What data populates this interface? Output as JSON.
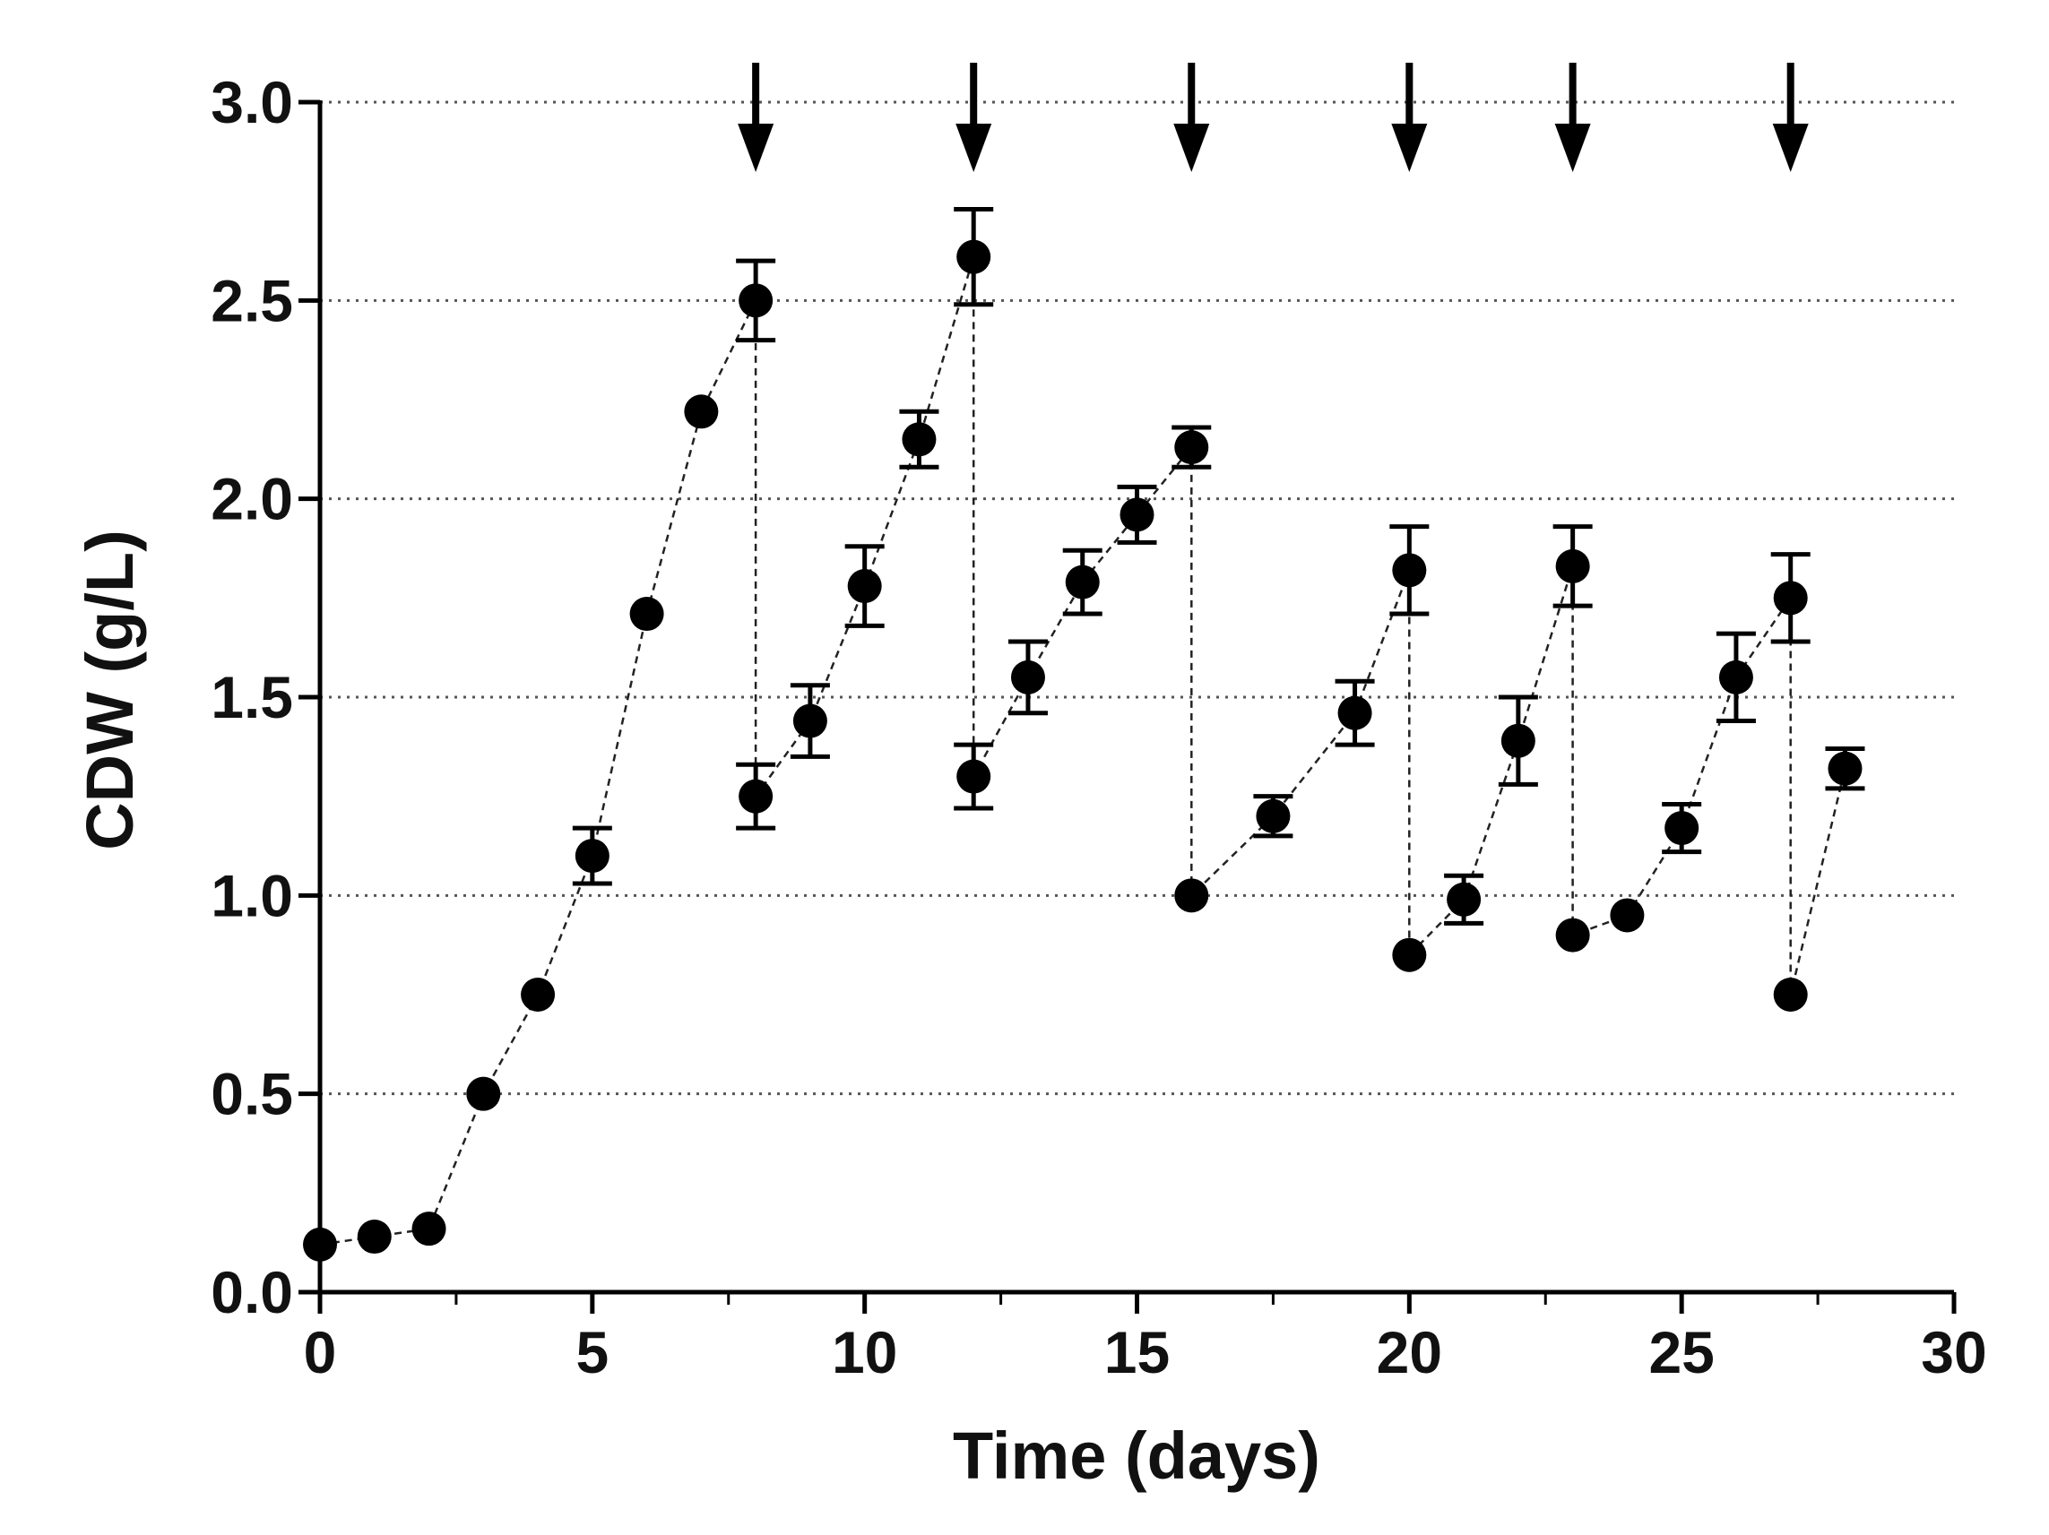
{
  "chart_data": {
    "type": "scatter",
    "title": "",
    "xlabel": "Time (days)",
    "ylabel": "CDW (g/L)",
    "xlim": [
      0,
      30
    ],
    "ylim": [
      0,
      3.0
    ],
    "x_ticks": [
      0,
      5,
      10,
      15,
      20,
      25,
      30
    ],
    "x_tick_labels": [
      "0",
      "5",
      "10",
      "15",
      "20",
      "25",
      "30"
    ],
    "y_ticks": [
      0,
      0.5,
      1.0,
      1.5,
      2.0,
      2.5,
      3.0
    ],
    "y_tick_labels": [
      "0.0",
      "0.5",
      "1.0",
      "1.5",
      "2.0",
      "2.5",
      "3.0"
    ],
    "grid": "horizontal-dotted",
    "series": [
      {
        "name": "CDW",
        "points": [
          {
            "x": 0,
            "y": 0.12,
            "err": 0
          },
          {
            "x": 1,
            "y": 0.14,
            "err": 0
          },
          {
            "x": 2,
            "y": 0.16,
            "err": 0
          },
          {
            "x": 3,
            "y": 0.5,
            "err": 0
          },
          {
            "x": 4,
            "y": 0.75,
            "err": 0
          },
          {
            "x": 5,
            "y": 1.1,
            "err": 0.07
          },
          {
            "x": 6,
            "y": 1.71,
            "err": 0
          },
          {
            "x": 7,
            "y": 2.22,
            "err": 0
          },
          {
            "x": 8,
            "y": 2.5,
            "err": 0.1
          },
          {
            "x": 8,
            "y": 1.25,
            "err": 0.08
          },
          {
            "x": 9,
            "y": 1.44,
            "err": 0.09
          },
          {
            "x": 10,
            "y": 1.78,
            "err": 0.1
          },
          {
            "x": 11,
            "y": 2.15,
            "err": 0.07
          },
          {
            "x": 12,
            "y": 2.61,
            "err": 0.12
          },
          {
            "x": 12,
            "y": 1.3,
            "err": 0.08
          },
          {
            "x": 13,
            "y": 1.55,
            "err": 0.09
          },
          {
            "x": 14,
            "y": 1.79,
            "err": 0.08
          },
          {
            "x": 15,
            "y": 1.96,
            "err": 0.07
          },
          {
            "x": 16,
            "y": 2.13,
            "err": 0.05
          },
          {
            "x": 16,
            "y": 1.0,
            "err": 0
          },
          {
            "x": 17.5,
            "y": 1.2,
            "err": 0.05
          },
          {
            "x": 19,
            "y": 1.46,
            "err": 0.08
          },
          {
            "x": 20,
            "y": 1.82,
            "err": 0.11
          },
          {
            "x": 20,
            "y": 0.85,
            "err": 0
          },
          {
            "x": 21,
            "y": 0.99,
            "err": 0.06
          },
          {
            "x": 22,
            "y": 1.39,
            "err": 0.11
          },
          {
            "x": 23,
            "y": 1.83,
            "err": 0.1
          },
          {
            "x": 23,
            "y": 0.9,
            "err": 0
          },
          {
            "x": 24,
            "y": 0.95,
            "err": 0
          },
          {
            "x": 25,
            "y": 1.17,
            "err": 0.06
          },
          {
            "x": 26,
            "y": 1.55,
            "err": 0.11
          },
          {
            "x": 27,
            "y": 1.75,
            "err": 0.11
          },
          {
            "x": 27,
            "y": 0.75,
            "err": 0
          },
          {
            "x": 28,
            "y": 1.32,
            "err": 0.05
          }
        ]
      }
    ],
    "annotations": {
      "arrows_at_x": [
        8,
        12,
        16,
        20,
        23,
        27
      ],
      "arrow_direction": "down",
      "arrow_position": "top"
    }
  }
}
